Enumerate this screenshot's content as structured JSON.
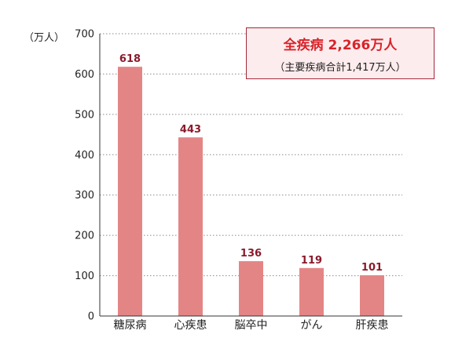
{
  "chart_data": {
    "type": "bar",
    "categories": [
      "糖尿病",
      "心疾患",
      "脳卒中",
      "がん",
      "肝疾患"
    ],
    "values": [
      618,
      443,
      136,
      119,
      101
    ],
    "ylabel": "（万人）",
    "ylim": [
      0,
      700
    ],
    "yticks": [
      0,
      100,
      200,
      300,
      400,
      500,
      600,
      700
    ],
    "grid": true,
    "bar_color": "#e48585",
    "value_label_color": "#8b1a2b"
  },
  "callout": {
    "title": "全疾病 2,266万人",
    "subtitle": "（主要疾病合計1,417万人）",
    "border_color": "#a12a3a",
    "background_color": "#fdeced",
    "title_color": "#d8232a"
  }
}
